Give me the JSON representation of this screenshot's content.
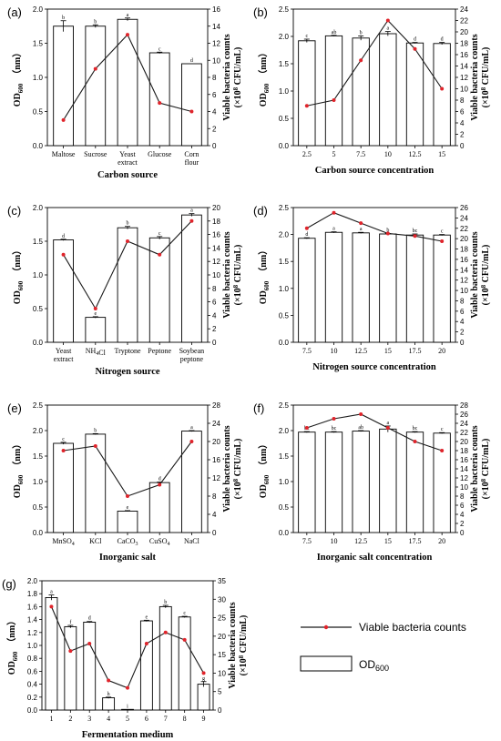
{
  "chart_data": [
    {
      "panel_label": "(a)",
      "type": "bar",
      "categories": [
        [
          "Maltose"
        ],
        [
          "Sucrose"
        ],
        [
          "Yeast",
          "extract"
        ],
        [
          "Glucose"
        ],
        [
          "Corn",
          "flour"
        ]
      ],
      "xlabel": "Carbon source",
      "ylabel_left": "OD600 (nm)",
      "ylabel_right": "Viable bacteria counts (×10^8 CFU/mL)",
      "ylim_left": [
        0,
        2.0
      ],
      "yticks_left": [
        0.0,
        0.5,
        1.0,
        1.5,
        2.0
      ],
      "ylim_right": [
        0,
        16
      ],
      "yticks_right": [
        0,
        2,
        4,
        6,
        8,
        10,
        12,
        14,
        16
      ],
      "series": [
        {
          "name": "OD600",
          "kind": "bar",
          "values": [
            1.75,
            1.75,
            1.85,
            1.36,
            1.2
          ],
          "errors": [
            0.08,
            0.02,
            0.02,
            0.01,
            0.0
          ],
          "letters": [
            "b",
            "b",
            "a",
            "c",
            "d"
          ]
        },
        {
          "name": "Viable bacteria counts",
          "kind": "line",
          "values": [
            3,
            9,
            13,
            5,
            4
          ]
        }
      ]
    },
    {
      "panel_label": "(b)",
      "type": "bar",
      "categories": [
        [
          "2.5"
        ],
        [
          "5"
        ],
        [
          "7.5"
        ],
        [
          "10"
        ],
        [
          "12.5"
        ],
        [
          "15"
        ]
      ],
      "xlabel": "Carbon source concentration",
      "ylabel_left": "OD600 (nm)",
      "ylabel_right": "Viable bacteria counts (×10^8 CFU/mL)",
      "ylim_left": [
        0,
        2.5
      ],
      "yticks_left": [
        0.0,
        0.5,
        1.0,
        1.5,
        2.0,
        2.5
      ],
      "ylim_right": [
        0,
        24
      ],
      "yticks_right": [
        0,
        2,
        4,
        6,
        8,
        10,
        12,
        14,
        16,
        18,
        20,
        22,
        24
      ],
      "series": [
        {
          "name": "OD600",
          "kind": "bar",
          "values": [
            1.92,
            2.01,
            1.97,
            2.05,
            1.88,
            1.87
          ],
          "errors": [
            0.03,
            0.01,
            0.04,
            0.04,
            0.01,
            0.02
          ],
          "letters": [
            "c",
            "ab",
            "b",
            "a",
            "d",
            "d"
          ]
        },
        {
          "name": "Viable bacteria counts",
          "kind": "line",
          "values": [
            7,
            8,
            15,
            22,
            17,
            10
          ]
        }
      ]
    },
    {
      "panel_label": "(c)",
      "type": "bar",
      "categories": [
        [
          "Yeast",
          "extract"
        ],
        [
          "NH4Cl"
        ],
        [
          "Tryptone"
        ],
        [
          "Peptone"
        ],
        [
          "Soybean",
          "peptone"
        ]
      ],
      "xlabel": "Nitrogen source",
      "ylabel_left": "OD600 (nm)",
      "ylabel_right": "Viable bacteria counts (×10^8 CFU/mL)",
      "ylim_left": [
        0,
        2.0
      ],
      "yticks_left": [
        0.0,
        0.5,
        1.0,
        1.5,
        2.0
      ],
      "ylim_right": [
        0,
        20
      ],
      "yticks_right": [
        0,
        2,
        4,
        6,
        8,
        10,
        12,
        14,
        16,
        18,
        20
      ],
      "series": [
        {
          "name": "OD600",
          "kind": "bar",
          "values": [
            1.52,
            0.37,
            1.7,
            1.55,
            1.89
          ],
          "errors": [
            0.01,
            0.01,
            0.02,
            0.02,
            0.02
          ],
          "letters": [
            "d",
            "e",
            "b",
            "c",
            "a"
          ]
        },
        {
          "name": "Viable bacteria counts",
          "kind": "line",
          "values": [
            13,
            5,
            15,
            13,
            18
          ]
        }
      ]
    },
    {
      "panel_label": "(d)",
      "type": "bar",
      "categories": [
        [
          "7.5"
        ],
        [
          "10"
        ],
        [
          "12.5"
        ],
        [
          "15"
        ],
        [
          "17.5"
        ],
        [
          "20"
        ]
      ],
      "xlabel": "Nitrogen source concentration",
      "ylabel_left": "OD600 (nm)",
      "ylabel_right": "Viable bacteria counts (×10^8 CFU/mL)",
      "ylim_left": [
        0,
        2.5
      ],
      "yticks_left": [
        0.0,
        0.5,
        1.0,
        1.5,
        2.0,
        2.5
      ],
      "ylim_right": [
        0,
        26
      ],
      "yticks_right": [
        0,
        2,
        4,
        6,
        8,
        10,
        12,
        14,
        16,
        18,
        20,
        22,
        24,
        26
      ],
      "series": [
        {
          "name": "OD600",
          "kind": "bar",
          "values": [
            1.93,
            2.04,
            2.03,
            2.01,
            1.99,
            1.99
          ],
          "errors": [
            0.01,
            0.01,
            0.01,
            0.01,
            0.02,
            0.01
          ],
          "letters": [
            "d",
            "a",
            "a",
            "b",
            "bc",
            "c"
          ]
        },
        {
          "name": "Viable bacteria counts",
          "kind": "line",
          "values": [
            22,
            25,
            23,
            21,
            20.5,
            19.5
          ]
        }
      ]
    },
    {
      "panel_label": "(e)",
      "type": "bar",
      "categories": [
        [
          "MnSO4"
        ],
        [
          "KCl"
        ],
        [
          "CaCO3"
        ],
        [
          "CuSO4"
        ],
        [
          "NaCl"
        ]
      ],
      "xlabel": "Inorganic salt",
      "ylabel_left": "OD600 (nm)",
      "ylabel_right": "Viable bacteria counts (×10^8 CFU/mL)",
      "ylim_left": [
        0,
        2.5
      ],
      "yticks_left": [
        0.0,
        0.5,
        1.0,
        1.5,
        2.0,
        2.5
      ],
      "ylim_right": [
        0,
        28
      ],
      "yticks_right": [
        0,
        4,
        8,
        12,
        16,
        20,
        24,
        28
      ],
      "series": [
        {
          "name": "OD600",
          "kind": "bar",
          "values": [
            1.75,
            1.93,
            0.42,
            0.98,
            1.99
          ],
          "errors": [
            0.02,
            0.01,
            0.01,
            0.01,
            0.01
          ],
          "letters": [
            "c",
            "b",
            "e",
            "d",
            "a"
          ]
        },
        {
          "name": "Viable bacteria counts",
          "kind": "line",
          "values": [
            18,
            19,
            8,
            10.5,
            20
          ]
        }
      ]
    },
    {
      "panel_label": "(f)",
      "type": "bar",
      "categories": [
        [
          "7.5"
        ],
        [
          "10"
        ],
        [
          "12.5"
        ],
        [
          "15"
        ],
        [
          "17.5"
        ],
        [
          "20"
        ]
      ],
      "xlabel": "Inorganic salt concentration",
      "ylabel_left": "OD600 (nm)",
      "ylabel_right": "Viable bacteria counts (×10^8 CFU/mL)",
      "ylim_left": [
        0,
        2.5
      ],
      "yticks_left": [
        0.0,
        0.5,
        1.0,
        1.5,
        2.0,
        2.5
      ],
      "ylim_right": [
        0,
        28
      ],
      "yticks_right": [
        0,
        2,
        4,
        6,
        8,
        10,
        12,
        14,
        16,
        18,
        20,
        22,
        24,
        26,
        28
      ],
      "series": [
        {
          "name": "OD600",
          "kind": "bar",
          "values": [
            1.97,
            1.97,
            1.99,
            2.03,
            1.97,
            1.95
          ],
          "errors": [
            0.01,
            0.01,
            0.01,
            0.06,
            0.01,
            0.01
          ],
          "letters": [
            "bc",
            "bc",
            "ab",
            "a",
            "bc",
            "c"
          ]
        },
        {
          "name": "Viable bacteria counts",
          "kind": "line",
          "values": [
            23,
            25,
            26,
            23,
            20,
            18
          ]
        }
      ]
    },
    {
      "panel_label": "(g)",
      "type": "bar",
      "categories": [
        [
          "1"
        ],
        [
          "2"
        ],
        [
          "3"
        ],
        [
          "4"
        ],
        [
          "5"
        ],
        [
          "6"
        ],
        [
          "7"
        ],
        [
          "8"
        ],
        [
          "9"
        ]
      ],
      "xlabel": "Fermentation medium",
      "ylabel_left": "OD600 (nm)",
      "ylabel_right": "Viable bacteria counts (×10^8 CFU/mL)",
      "ylim_left": [
        0,
        2.0
      ],
      "yticks_left": [
        0.0,
        0.2,
        0.4,
        0.6,
        0.8,
        1.0,
        1.2,
        1.4,
        1.6,
        1.8,
        2.0
      ],
      "ylim_right": [
        0,
        35
      ],
      "yticks_right": [
        0,
        5,
        10,
        15,
        20,
        25,
        30,
        35
      ],
      "series": [
        {
          "name": "OD600",
          "kind": "bar",
          "values": [
            1.74,
            1.29,
            1.36,
            0.19,
            0.01,
            1.38,
            1.6,
            1.44,
            0.4
          ],
          "errors": [
            0.04,
            0.02,
            0.01,
            0.01,
            0.0,
            0.01,
            0.02,
            0.01,
            0.04
          ],
          "letters": [
            "a",
            "f",
            "d",
            "h",
            "i",
            "e",
            "b",
            "c",
            "g"
          ]
        },
        {
          "name": "Viable bacteria counts",
          "kind": "line",
          "values": [
            28,
            16,
            18,
            8,
            6,
            18,
            21,
            19,
            10
          ]
        }
      ]
    }
  ],
  "legend": {
    "line_label": "Viable bacteria counts",
    "bar_label": "OD600"
  },
  "colors": {
    "line": "#1a1a1a",
    "marker": "#e0242b",
    "bar_fill": "#ffffff",
    "bar_stroke": "#000000"
  }
}
